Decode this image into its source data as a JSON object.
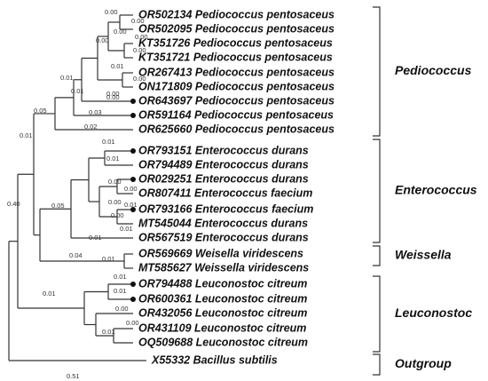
{
  "leaves": [
    "OR502134 Pediococcus pentosaceus",
    "OR502095 Pediococcus pentosaceus",
    "KT351726 Pediococcus pentosaceus",
    "KT351721 Pediococcus pentosaceus",
    "OR267413 Pediococcus pentosaceus",
    "ON171809 Pediococcus pentosaceus",
    "OR643697 Pediococcus pentosaceus",
    "OR591164 Pediococcus pentosaceus",
    "OR625660 Pediococcus pentosaceus",
    "OR793151 Enterococcus durans",
    "OR794489 Enterococcus durans",
    "OR029251 Enterococcus durans",
    "OR807411 Enterococcus faecium",
    "OR793166 Enterococcus faecium",
    "MT545044 Enterococcus durans",
    "OR567519 Enterococcus durans",
    "OR569669 Weisella viridescens",
    "MT585627 Weissella viridescens",
    "OR794488 Leuconostoc citreum",
    "OR600361 Leuconostoc citreum",
    "OR432056 Leuconostoc citreum",
    "OR431109 Leuconostoc citreum",
    "OQ509688 Leuconostoc citreum",
    "X55332 Bacillus subtilis"
  ],
  "clades": [
    "Pediococcus",
    "Enterococcus",
    "Weissella",
    "Leuconostoc",
    "Outgroup"
  ],
  "branch_lengths": [
    "0.00",
    "0.00",
    "0.00",
    "0.00",
    "0.00",
    "0.00",
    "0.01",
    "0.00",
    "0.01",
    "0.01",
    "0.00",
    "0.00",
    "0.03",
    "0.05",
    "0.02",
    "0.01",
    "0.01",
    "0.01",
    "0.05",
    "0.00",
    "0.00",
    "0.00",
    "0.01",
    "0.00",
    "0.01",
    "0.01",
    "0.04",
    "0.01",
    "0.01",
    "0.01",
    "0.01",
    "0.00",
    "0.00",
    "0.01",
    "0.40",
    "0.51"
  ]
}
